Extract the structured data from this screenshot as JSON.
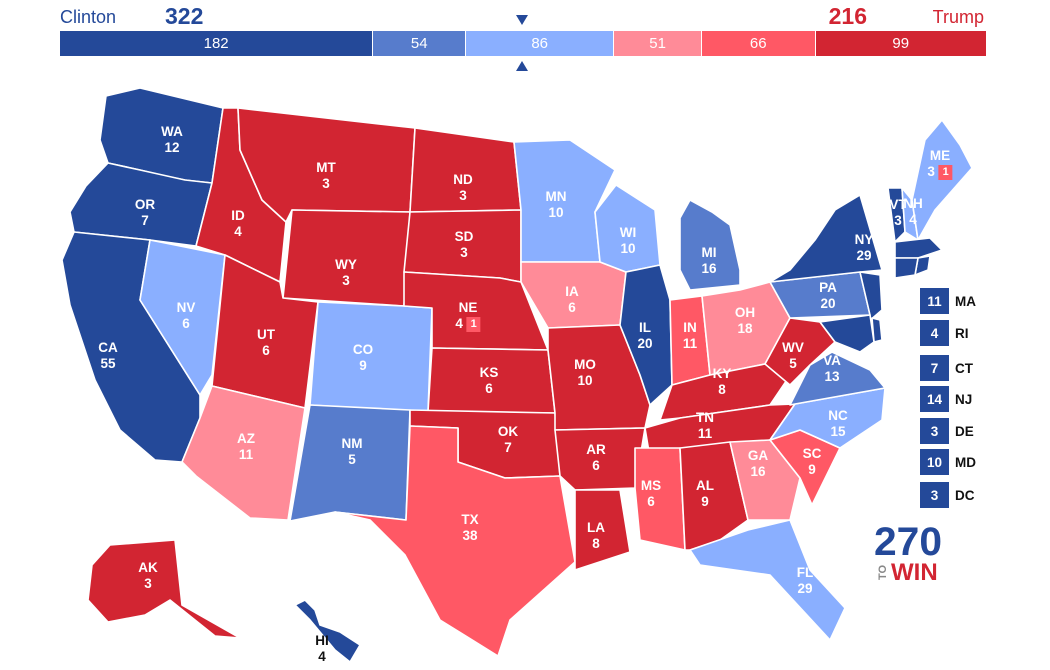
{
  "colors": {
    "safe_d": "#244999",
    "likely_d": "#577CCC",
    "leans_d": "#8AAFFF",
    "leans_r": "#FF8B98",
    "likely_r": "#FF5865",
    "safe_r": "#D22532",
    "dem_text": "#244999",
    "rep_text": "#D22532"
  },
  "header": {
    "dem_name": "Clinton",
    "dem_total": "322",
    "rep_name": "Trump",
    "rep_total": "216"
  },
  "bar": [
    {
      "value": 182,
      "label": "182",
      "rating": "safe_d"
    },
    {
      "value": 54,
      "label": "54",
      "rating": "likely_d"
    },
    {
      "value": 86,
      "label": "86",
      "rating": "leans_d"
    },
    {
      "value": 51,
      "label": "51",
      "rating": "leans_r"
    },
    {
      "value": 66,
      "label": "66",
      "rating": "likely_r"
    },
    {
      "value": 99,
      "label": "99",
      "rating": "safe_r"
    }
  ],
  "states": [
    {
      "abbr": "WA",
      "ev": "12",
      "rating": "safe_d"
    },
    {
      "abbr": "OR",
      "ev": "7",
      "rating": "safe_d"
    },
    {
      "abbr": "CA",
      "ev": "55",
      "rating": "safe_d"
    },
    {
      "abbr": "NV",
      "ev": "6",
      "rating": "leans_d"
    },
    {
      "abbr": "ID",
      "ev": "4",
      "rating": "safe_r"
    },
    {
      "abbr": "MT",
      "ev": "3",
      "rating": "safe_r"
    },
    {
      "abbr": "WY",
      "ev": "3",
      "rating": "safe_r"
    },
    {
      "abbr": "UT",
      "ev": "6",
      "rating": "safe_r"
    },
    {
      "abbr": "AZ",
      "ev": "11",
      "rating": "leans_r"
    },
    {
      "abbr": "CO",
      "ev": "9",
      "rating": "leans_d"
    },
    {
      "abbr": "NM",
      "ev": "5",
      "rating": "likely_d"
    },
    {
      "abbr": "ND",
      "ev": "3",
      "rating": "safe_r"
    },
    {
      "abbr": "SD",
      "ev": "3",
      "rating": "safe_r"
    },
    {
      "abbr": "NE",
      "ev": "4",
      "rating": "safe_r",
      "extra": "1",
      "extra_rating": "likely_r"
    },
    {
      "abbr": "KS",
      "ev": "6",
      "rating": "safe_r"
    },
    {
      "abbr": "OK",
      "ev": "7",
      "rating": "safe_r"
    },
    {
      "abbr": "TX",
      "ev": "38",
      "rating": "likely_r"
    },
    {
      "abbr": "MN",
      "ev": "10",
      "rating": "leans_d"
    },
    {
      "abbr": "IA",
      "ev": "6",
      "rating": "leans_r"
    },
    {
      "abbr": "MO",
      "ev": "10",
      "rating": "safe_r"
    },
    {
      "abbr": "AR",
      "ev": "6",
      "rating": "safe_r"
    },
    {
      "abbr": "LA",
      "ev": "8",
      "rating": "safe_r"
    },
    {
      "abbr": "WI",
      "ev": "10",
      "rating": "leans_d"
    },
    {
      "abbr": "IL",
      "ev": "20",
      "rating": "safe_d"
    },
    {
      "abbr": "MI",
      "ev": "16",
      "rating": "likely_d"
    },
    {
      "abbr": "IN",
      "ev": "11",
      "rating": "likely_r"
    },
    {
      "abbr": "OH",
      "ev": "18",
      "rating": "leans_r"
    },
    {
      "abbr": "KY",
      "ev": "8",
      "rating": "safe_r"
    },
    {
      "abbr": "TN",
      "ev": "11",
      "rating": "safe_r"
    },
    {
      "abbr": "MS",
      "ev": "6",
      "rating": "likely_r"
    },
    {
      "abbr": "AL",
      "ev": "9",
      "rating": "safe_r"
    },
    {
      "abbr": "GA",
      "ev": "16",
      "rating": "leans_r"
    },
    {
      "abbr": "FL",
      "ev": "29",
      "rating": "leans_d"
    },
    {
      "abbr": "SC",
      "ev": "9",
      "rating": "likely_r"
    },
    {
      "abbr": "NC",
      "ev": "15",
      "rating": "leans_d"
    },
    {
      "abbr": "VA",
      "ev": "13",
      "rating": "likely_d"
    },
    {
      "abbr": "WV",
      "ev": "5",
      "rating": "safe_r"
    },
    {
      "abbr": "PA",
      "ev": "20",
      "rating": "likely_d"
    },
    {
      "abbr": "NY",
      "ev": "29",
      "rating": "safe_d"
    },
    {
      "abbr": "VT",
      "ev": "3",
      "rating": "safe_d"
    },
    {
      "abbr": "NH",
      "ev": "4",
      "rating": "leans_d"
    },
    {
      "abbr": "ME",
      "ev": "3",
      "rating": "leans_d",
      "extra": "1",
      "extra_rating": "likely_r"
    },
    {
      "abbr": "AK",
      "ev": "3",
      "rating": "safe_r"
    },
    {
      "abbr": "HI",
      "ev": "4",
      "rating": "safe_d"
    }
  ],
  "small_states": [
    {
      "abbr": "MA",
      "ev": "11",
      "rating": "safe_d"
    },
    {
      "abbr": "RI",
      "ev": "4",
      "rating": "safe_d"
    },
    {
      "abbr": "CT",
      "ev": "7",
      "rating": "safe_d"
    },
    {
      "abbr": "NJ",
      "ev": "14",
      "rating": "safe_d"
    },
    {
      "abbr": "DE",
      "ev": "3",
      "rating": "safe_d"
    },
    {
      "abbr": "MD",
      "ev": "10",
      "rating": "safe_d"
    },
    {
      "abbr": "DC",
      "ev": "3",
      "rating": "safe_d"
    }
  ],
  "logo": {
    "line1": "270",
    "line2": "TO",
    "line3": "WIN"
  }
}
